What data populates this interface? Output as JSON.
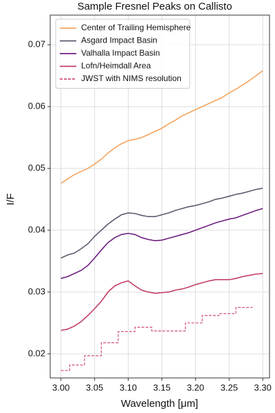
{
  "chart_data": {
    "type": "line",
    "title": "Sample Fresnel Peaks on Callisto",
    "x_label": "Wavelength [μm]",
    "y_label": "I/F",
    "xlim": [
      2.984,
      3.31
    ],
    "ylim": [
      0.0161,
      0.0748
    ],
    "xticks": [
      {
        "value": 3,
        "label": "3.00"
      },
      3.05,
      {
        "value": 3.1,
        "label": "3.10"
      },
      3.15,
      {
        "value": 3.2,
        "label": "3.20"
      },
      3.25,
      {
        "value": 3.3,
        "label": "3.30"
      }
    ],
    "yticks": [
      0.02,
      0.03,
      0.04,
      0.05,
      0.06,
      0.07
    ],
    "grid": true,
    "legend": "upper left",
    "x": [
      3.0,
      3.01,
      3.02,
      3.03,
      3.04,
      3.05,
      3.06,
      3.07,
      3.08,
      3.09,
      3.1,
      3.11,
      3.12,
      3.13,
      3.14,
      3.15,
      3.16,
      3.17,
      3.18,
      3.19,
      3.2,
      3.21,
      3.22,
      3.23,
      3.24,
      3.25,
      3.26,
      3.27,
      3.28,
      3.29,
      3.3
    ],
    "series": [
      {
        "name": "Center of Trailing Hemisphere",
        "color": "#f5a45e",
        "values": [
          0.0476,
          0.0483,
          0.049,
          0.0495,
          0.05,
          0.0507,
          0.0515,
          0.0525,
          0.0533,
          0.054,
          0.0545,
          0.0547,
          0.055,
          0.0555,
          0.056,
          0.0565,
          0.0572,
          0.0578,
          0.0585,
          0.059,
          0.0595,
          0.06,
          0.0605,
          0.061,
          0.0615,
          0.0622,
          0.0628,
          0.0635,
          0.0642,
          0.065,
          0.0658
        ]
      },
      {
        "name": "Asgard Impact Basin",
        "color": "#5c5a6e",
        "values": [
          0.0355,
          0.036,
          0.0363,
          0.037,
          0.0378,
          0.039,
          0.04,
          0.041,
          0.0418,
          0.0425,
          0.0428,
          0.0427,
          0.0424,
          0.0422,
          0.0422,
          0.0425,
          0.0428,
          0.0432,
          0.0435,
          0.0438,
          0.044,
          0.0443,
          0.0446,
          0.045,
          0.0452,
          0.0455,
          0.0458,
          0.046,
          0.0463,
          0.0466,
          0.0468
        ]
      },
      {
        "name": "Valhalla Impact Basin",
        "color": "#6e1e80",
        "values": [
          0.0322,
          0.0325,
          0.033,
          0.0335,
          0.0343,
          0.0355,
          0.0368,
          0.038,
          0.0388,
          0.0393,
          0.0395,
          0.0393,
          0.0388,
          0.0385,
          0.0383,
          0.0384,
          0.0387,
          0.039,
          0.0393,
          0.0396,
          0.04,
          0.0404,
          0.0408,
          0.0412,
          0.0415,
          0.0418,
          0.042,
          0.0424,
          0.0428,
          0.0432,
          0.0435
        ]
      },
      {
        "name": "Lofn/Heimdall Area",
        "color": "#c23e62",
        "values": [
          0.0238,
          0.024,
          0.0245,
          0.0252,
          0.0262,
          0.0273,
          0.0285,
          0.03,
          0.031,
          0.0315,
          0.0318,
          0.031,
          0.0303,
          0.03,
          0.0298,
          0.0299,
          0.03,
          0.0303,
          0.0305,
          0.0308,
          0.0312,
          0.0315,
          0.0318,
          0.032,
          0.032,
          0.032,
          0.0322,
          0.0325,
          0.0327,
          0.0329,
          0.033
        ]
      },
      {
        "name": "JWST with NIMS resolution",
        "color": "#d24f72",
        "dashed": true,
        "x": [
          3.0,
          3.013,
          3.013,
          3.035,
          3.035,
          3.06,
          3.06,
          3.085,
          3.085,
          3.11,
          3.11,
          3.135,
          3.135,
          3.16,
          3.16,
          3.185,
          3.185,
          3.21,
          3.21,
          3.235,
          3.235,
          3.26,
          3.26,
          3.285
        ],
        "values": [
          0.0173,
          0.0173,
          0.0182,
          0.0182,
          0.0197,
          0.0197,
          0.0218,
          0.0218,
          0.0236,
          0.0236,
          0.0243,
          0.0243,
          0.0237,
          0.0237,
          0.0237,
          0.0237,
          0.025,
          0.025,
          0.0262,
          0.0262,
          0.0265,
          0.0265,
          0.0275,
          0.0275
        ]
      }
    ]
  }
}
